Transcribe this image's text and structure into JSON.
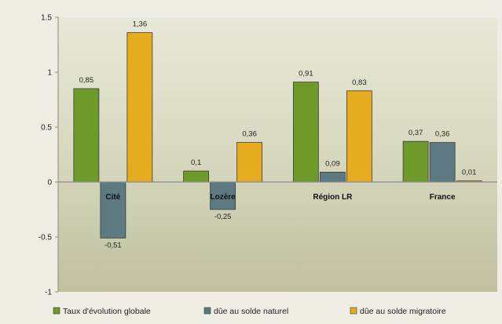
{
  "chart_data": {
    "type": "bar",
    "title": "",
    "xlabel": "",
    "ylabel": "",
    "ylim": [
      -1,
      1.5
    ],
    "yticks": [
      "1.5",
      "1",
      "0.5",
      "0",
      "-0.5",
      "-1"
    ],
    "categories": [
      "Cité",
      "Lozère",
      "Région LR",
      "France"
    ],
    "series": [
      {
        "name": "Taux d'évolution globale",
        "color": "#6e9a2a",
        "values": [
          0.85,
          0.1,
          0.91,
          0.37
        ],
        "labels": [
          "0,85",
          "0,1",
          "0,91",
          "0,37"
        ]
      },
      {
        "name": "dûe au solde naturel",
        "color": "#5d7a82",
        "values": [
          -0.51,
          -0.25,
          0.09,
          0.36
        ],
        "labels": [
          "-0,51",
          "-0,25",
          "0,09",
          "0,36"
        ]
      },
      {
        "name": "dûe au solde migratoire",
        "color": "#e4ac1e",
        "values": [
          1.36,
          0.36,
          0.83,
          0.01
        ],
        "labels": [
          "1,36",
          "0,36",
          "0,83",
          "0,01"
        ]
      }
    ],
    "legend_position": "bottom",
    "grid": false
  }
}
